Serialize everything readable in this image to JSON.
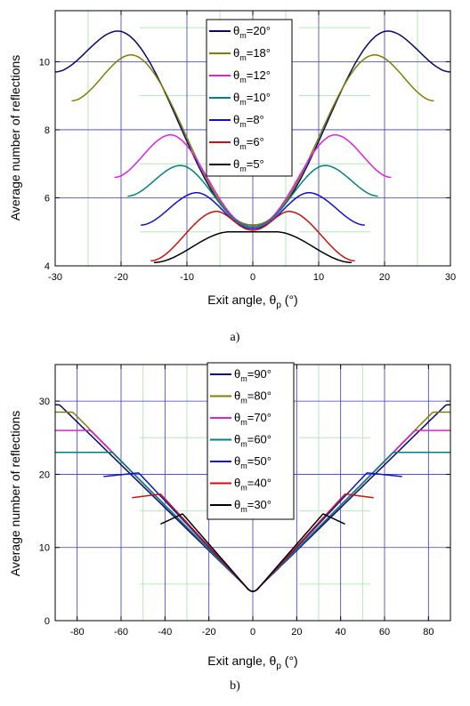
{
  "chart_data": [
    {
      "type": "line",
      "caption": "a)",
      "xlabel_main": "Exit angle, θ",
      "xlabel_sub": "p",
      "xlabel_unit": " (°)",
      "ylabel": "Average number of reflections",
      "xlim": [
        -30,
        30
      ],
      "ylim": [
        4,
        11.5
      ],
      "xticks": [
        -30,
        -20,
        -10,
        0,
        10,
        20,
        30
      ],
      "yticks": [
        4,
        6,
        8,
        10
      ],
      "grid": true,
      "legend_position": "top-center",
      "legend_prefix": "θ",
      "legend_sub": "m",
      "series": [
        {
          "label": "=20°",
          "color": "#0a0a66",
          "peak_x": 20.5,
          "peak_y": 10.9,
          "end_x": 30,
          "end_y": 9.7,
          "dip_y": 5.2
        },
        {
          "label": "=18°",
          "color": "#7f7f00",
          "peak_x": 18.5,
          "peak_y": 10.2,
          "end_x": 27.5,
          "end_y": 8.85,
          "dip_y": 5.2
        },
        {
          "label": "=12°",
          "color": "#e020e0",
          "peak_x": 12.5,
          "peak_y": 7.85,
          "end_x": 21,
          "end_y": 6.6,
          "dip_y": 5.15
        },
        {
          "label": "=10°",
          "color": "#008080",
          "peak_x": 11,
          "peak_y": 6.95,
          "end_x": 19,
          "end_y": 6.05,
          "dip_y": 5.15
        },
        {
          "label": "=8°",
          "color": "#1010cc",
          "peak_x": 8.5,
          "peak_y": 6.15,
          "end_x": 17,
          "end_y": 5.2,
          "dip_y": 5.1
        },
        {
          "label": "=6°",
          "color": "#cc1010",
          "peak_x": 5.5,
          "peak_y": 5.6,
          "end_x": 15.5,
          "end_y": 4.15,
          "dip_y": 5.05
        },
        {
          "label": "=5°",
          "color": "#000000",
          "peak_x": 3.5,
          "peak_y": 5.0,
          "end_x": 15,
          "end_y": 4.1,
          "dip_y": 5.0
        }
      ]
    },
    {
      "type": "line",
      "caption": "b)",
      "xlabel_main": "Exit angle, θ",
      "xlabel_sub": "p",
      "xlabel_unit": " (°)",
      "ylabel": "Average number of reflections",
      "xlim": [
        -90,
        90
      ],
      "ylim": [
        0,
        35
      ],
      "xticks": [
        -80,
        -60,
        -40,
        -20,
        0,
        20,
        40,
        60,
        80
      ],
      "yticks": [
        0,
        10,
        20,
        30
      ],
      "grid": true,
      "legend_position": "top-center",
      "legend_prefix": "θ",
      "legend_sub": "m",
      "series": [
        {
          "label": "=90°",
          "color": "#0a0a66",
          "flat_x": 88,
          "flat_y": 29.5,
          "end_x": 90,
          "end_y": 29.5
        },
        {
          "label": "=80°",
          "color": "#7f7f00",
          "flat_x": 82,
          "flat_y": 28.5,
          "end_x": 90,
          "end_y": 28.5
        },
        {
          "label": "=70°",
          "color": "#e020e0",
          "flat_x": 74,
          "flat_y": 26.0,
          "end_x": 90,
          "end_y": 26.0
        },
        {
          "label": "=60°",
          "color": "#008080",
          "flat_x": 64,
          "flat_y": 23.0,
          "end_x": 90,
          "end_y": 23.0
        },
        {
          "label": "=50°",
          "color": "#1010cc",
          "flat_x": 52,
          "flat_y": 20.2,
          "end_x": 68,
          "end_y": 19.7
        },
        {
          "label": "=40°",
          "color": "#cc1010",
          "flat_x": 42,
          "flat_y": 17.3,
          "end_x": 55,
          "end_y": 16.8
        },
        {
          "label": "=30°",
          "color": "#000000",
          "flat_x": 32,
          "flat_y": 14.6,
          "end_x": 42,
          "end_y": 13.2
        }
      ]
    }
  ]
}
